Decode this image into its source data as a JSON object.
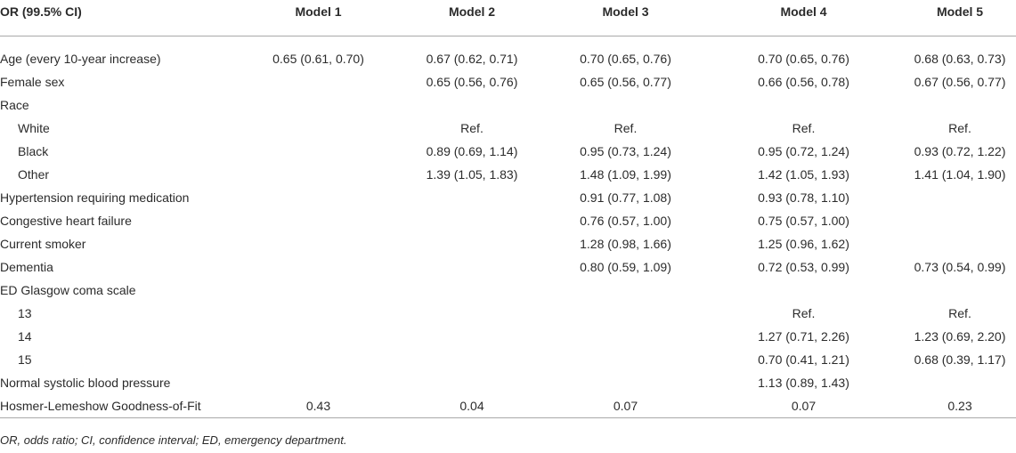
{
  "table": {
    "header": [
      "OR (99.5% CI)",
      "Model 1",
      "Model 2",
      "Model 3",
      "Model 4",
      "Model 5"
    ],
    "rows": [
      {
        "label": "Age (every 10-year increase)",
        "values": [
          "0.65 (0.61, 0.70)",
          "0.67 (0.62, 0.71)",
          "0.70 (0.65, 0.76)",
          "0.70 (0.65, 0.76)",
          "0.68 (0.63, 0.73)"
        ]
      },
      {
        "label": "Female sex",
        "values": [
          "",
          "0.65 (0.56, 0.76)",
          "0.65 (0.56, 0.77)",
          "0.66 (0.56, 0.78)",
          "0.67 (0.56, 0.77)"
        ]
      },
      {
        "label": "Race",
        "values": [
          "",
          "",
          "",
          "",
          ""
        ]
      },
      {
        "label": "White",
        "values": [
          "",
          "Ref.",
          "Ref.",
          "Ref.",
          "Ref."
        ]
      },
      {
        "label": "Black",
        "values": [
          "",
          "0.89 (0.69, 1.14)",
          "0.95 (0.73, 1.24)",
          "0.95 (0.72, 1.24)",
          "0.93 (0.72, 1.22)"
        ]
      },
      {
        "label": "Other",
        "values": [
          "",
          "1.39 (1.05, 1.83)",
          "1.48 (1.09, 1.99)",
          "1.42 (1.05, 1.93)",
          "1.41 (1.04, 1.90)"
        ]
      },
      {
        "label": "Hypertension requiring medication",
        "values": [
          "",
          "",
          "0.91 (0.77, 1.08)",
          "0.93 (0.78, 1.10)",
          ""
        ]
      },
      {
        "label": "Congestive heart failure",
        "values": [
          "",
          "",
          "0.76 (0.57, 1.00)",
          "0.75 (0.57, 1.00)",
          ""
        ]
      },
      {
        "label": "Current smoker",
        "values": [
          "",
          "",
          "1.28 (0.98, 1.66)",
          "1.25 (0.96, 1.62)",
          ""
        ]
      },
      {
        "label": "Dementia",
        "values": [
          "",
          "",
          "0.80 (0.59, 1.09)",
          "0.72 (0.53, 0.99)",
          "0.73 (0.54, 0.99)"
        ]
      },
      {
        "label": "ED Glasgow coma scale",
        "values": [
          "",
          "",
          "",
          "",
          ""
        ]
      },
      {
        "label": "13",
        "values": [
          "",
          "",
          "",
          "Ref.",
          "Ref."
        ]
      },
      {
        "label": "14",
        "values": [
          "",
          "",
          "",
          "1.27 (0.71, 2.26)",
          "1.23 (0.69, 2.20)"
        ]
      },
      {
        "label": "15",
        "values": [
          "",
          "",
          "",
          "0.70 (0.41, 1.21)",
          "0.68 (0.39, 1.17)"
        ]
      },
      {
        "label": "Normal systolic blood pressure",
        "values": [
          "",
          "",
          "",
          "1.13 (0.89, 1.43)",
          ""
        ]
      },
      {
        "label": "Hosmer-Lemeshow Goodness-of-Fit",
        "values": [
          "0.43",
          "0.04",
          "0.07",
          "0.07",
          "0.23"
        ]
      }
    ]
  },
  "footnote": "OR, odds ratio; CI, confidence interval; ED, emergency department."
}
